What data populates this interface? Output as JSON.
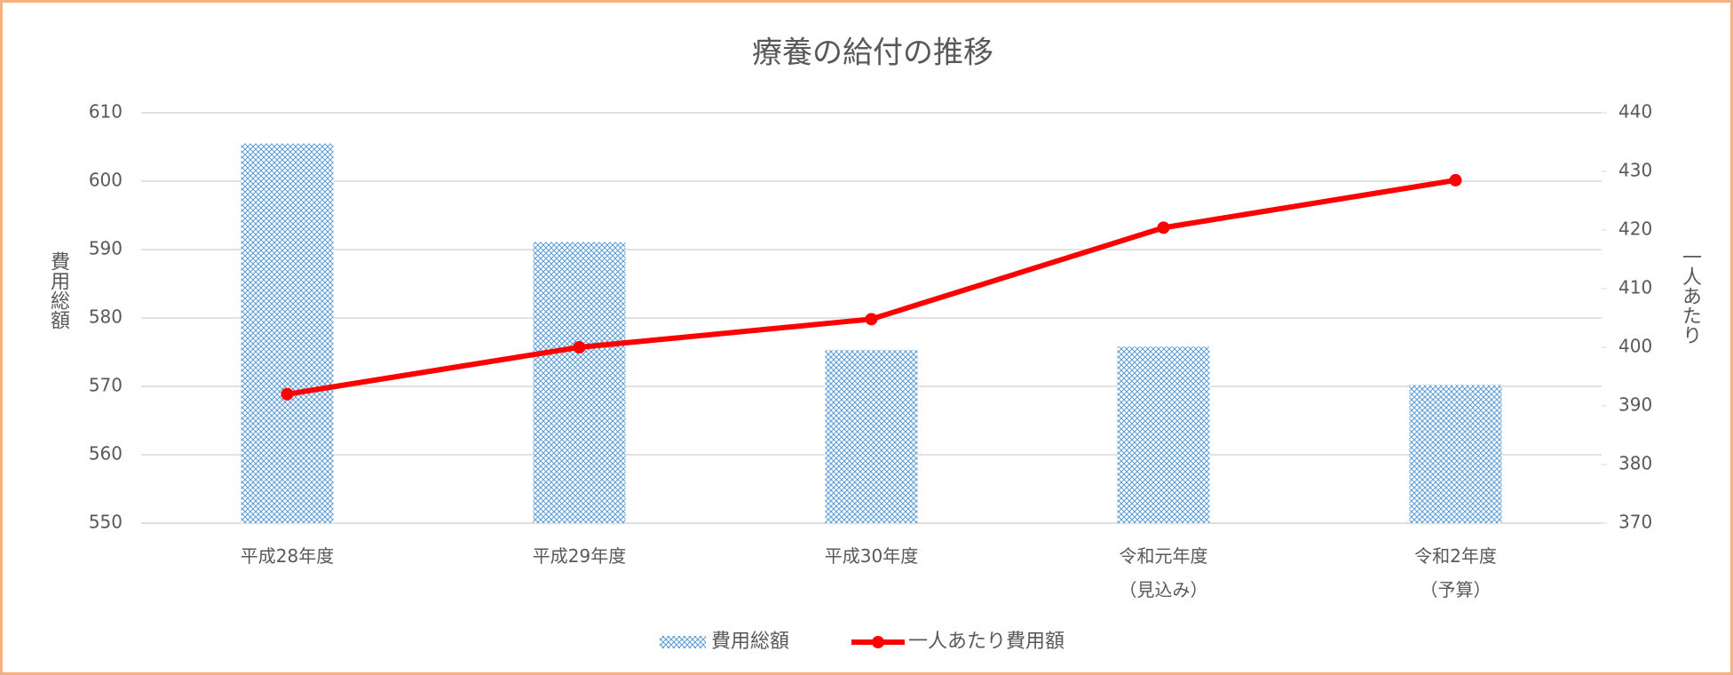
{
  "chart_data": {
    "type": "combo",
    "title": "療養の給付の推移",
    "categories": [
      "平成28年度",
      "平成29年度",
      "平成30年度",
      "令和元年度\n（見込み）",
      "令和2年度\n（予算）"
    ],
    "series": [
      {
        "name": "費用総額",
        "type": "bar",
        "color": "#5b9bd5",
        "values": [
          605.5,
          591.1,
          575.3,
          575.8,
          570.2
        ]
      },
      {
        "name": "一人あたり費用額",
        "type": "line",
        "axis": "y2",
        "color": "#ff0000",
        "values": [
          392.0,
          400.0,
          404.8,
          420.4,
          428.5
        ]
      }
    ],
    "y_label": "費用総額",
    "y2_label": "一人あたり",
    "ylim": [
      550,
      610
    ],
    "yticks": [
      550,
      560,
      570,
      580,
      590,
      600,
      610
    ],
    "y2lim": [
      370,
      440
    ],
    "y2ticks": [
      370,
      380,
      390,
      400,
      410,
      420,
      430,
      440
    ],
    "grid": true,
    "legend": "bottom"
  }
}
